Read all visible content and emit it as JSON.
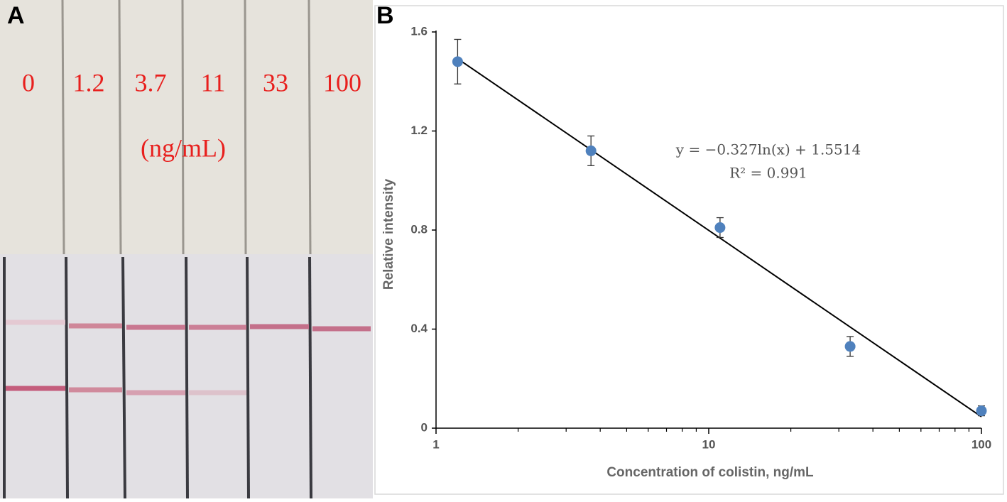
{
  "panel_a": {
    "label": "A",
    "strip_labels": [
      "0",
      "1.2",
      "3.7",
      "11",
      "33",
      "100"
    ],
    "unit": "(ng/mL)"
  },
  "chart_data": {
    "type": "scatter",
    "panel_label": "B",
    "x_label": "Concentration of colistin, ng/mL",
    "y_label": "Relative intensity",
    "x": [
      1.2,
      3.7,
      11,
      33,
      100
    ],
    "values": [
      1.48,
      1.12,
      0.81,
      0.33,
      0.07
    ],
    "errors": [
      0.09,
      0.06,
      0.04,
      0.04,
      0.02
    ],
    "color": "#4f81bd",
    "trendline": {
      "x": [
        1.2,
        100
      ],
      "y": [
        1.492,
        0.046
      ],
      "color": "#000000"
    },
    "equation": "y = −0.327ln(x) + 1.5514",
    "r_squared": "R² = 0.991",
    "xscale": "log",
    "xlim": [
      1,
      100
    ],
    "xticks": [
      1,
      10,
      100
    ],
    "xminor_ticks": [
      2,
      3,
      4,
      5,
      6,
      7,
      8,
      9,
      20,
      30,
      40,
      50,
      60,
      70,
      80,
      90
    ],
    "ylim": [
      0,
      1.6
    ],
    "yticks": [
      0,
      0.4,
      0.8,
      1.2,
      1.6
    ],
    "grid": false
  }
}
